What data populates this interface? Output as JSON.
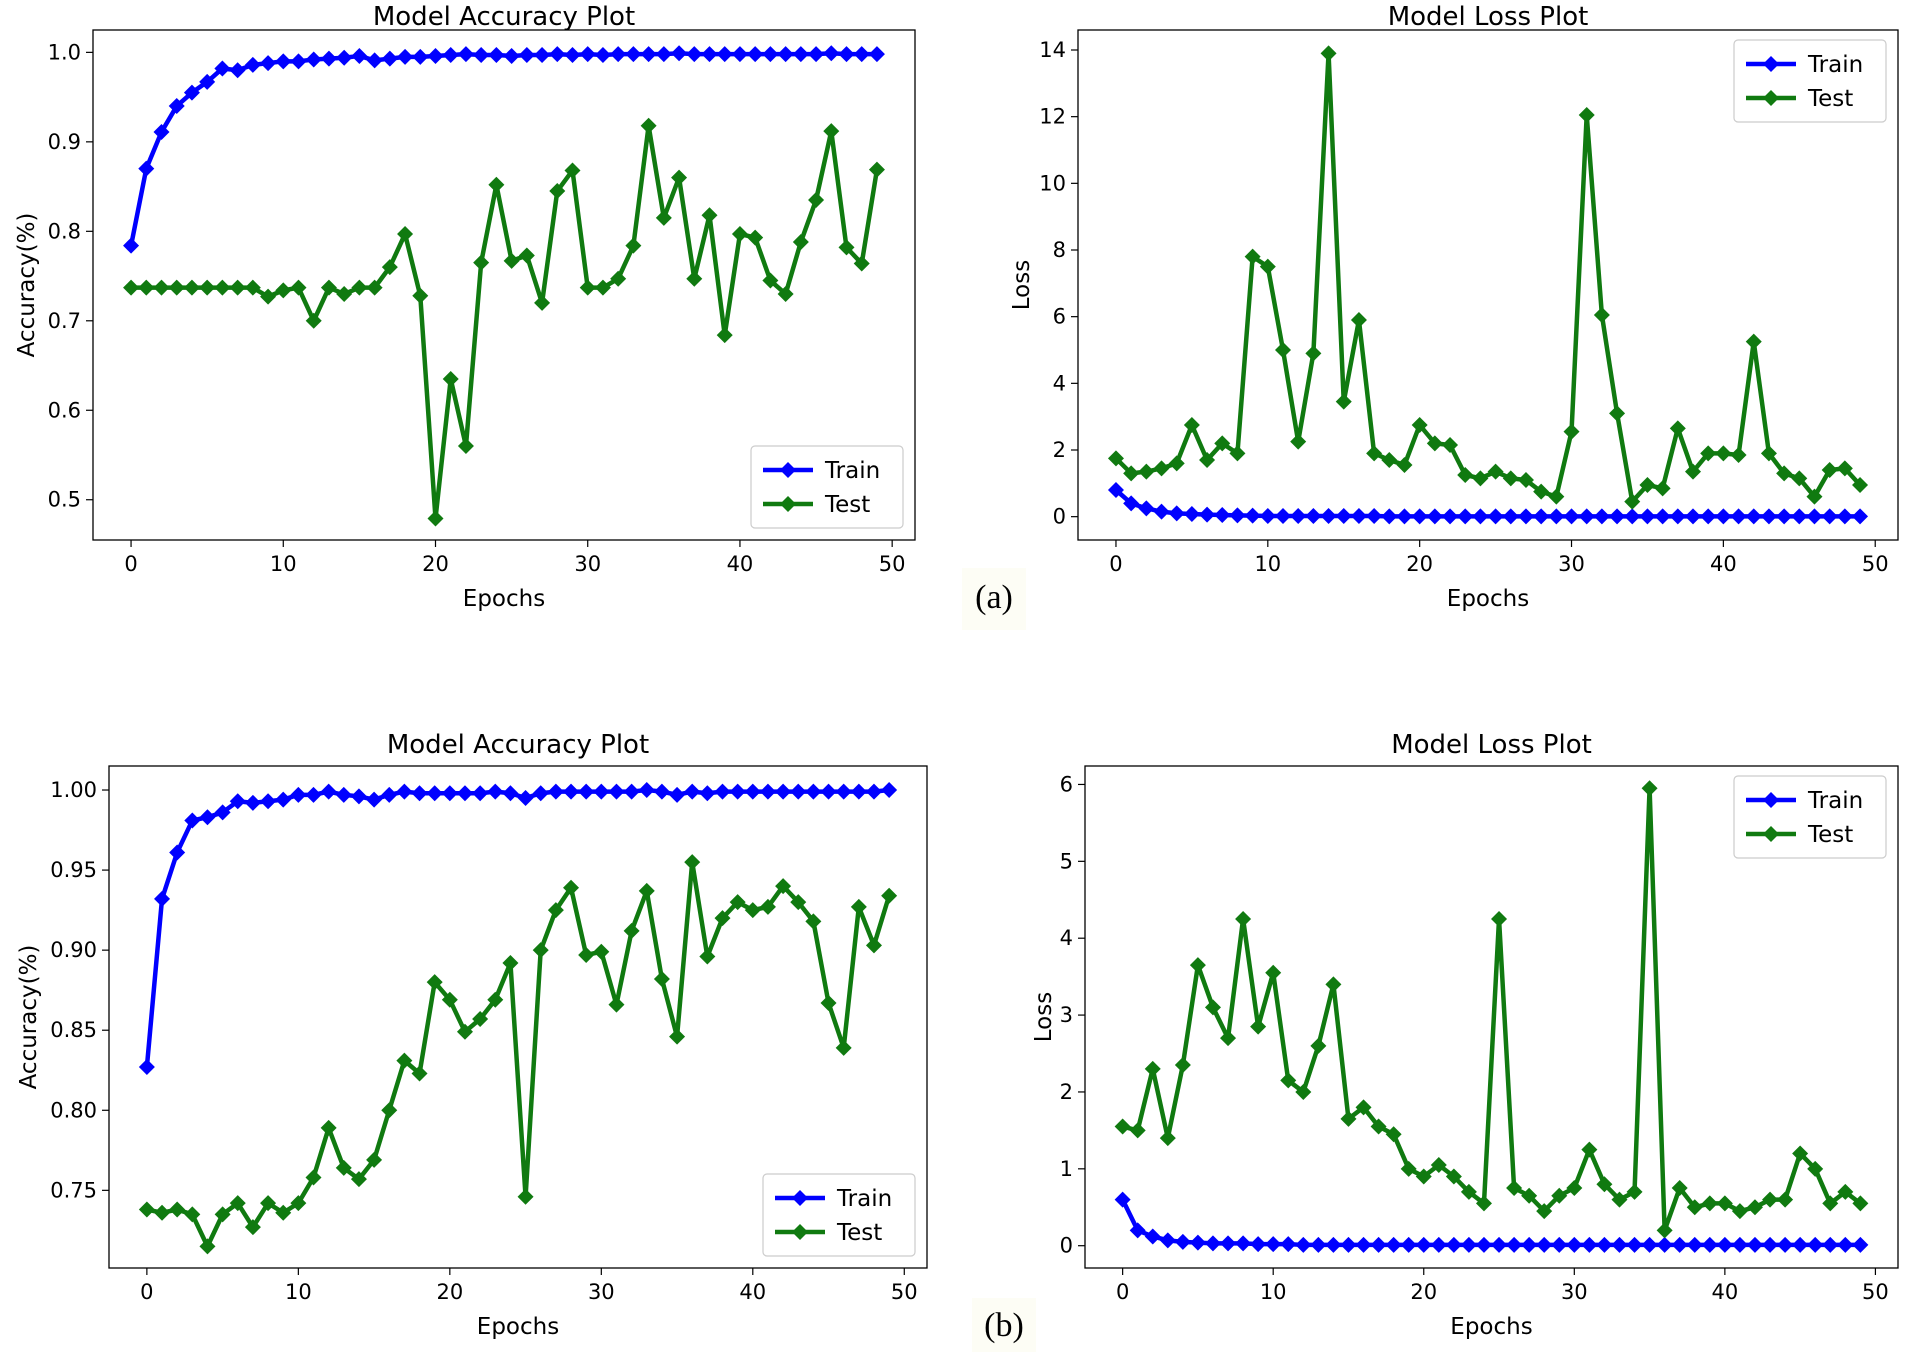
{
  "figure": {
    "panel_labels": [
      "(a)",
      "(b)"
    ],
    "colors": {
      "train": "#0000ff",
      "test": "#107a10"
    }
  },
  "chart_data": [
    {
      "id": "a-accuracy",
      "type": "line",
      "title": "Model Accuracy Plot",
      "xlabel": "Epochs",
      "ylabel": "Accuracy(%)",
      "xlim": [
        -2.5,
        51.5
      ],
      "ylim": [
        0.455,
        1.025
      ],
      "xticks": [
        0,
        10,
        20,
        30,
        40,
        50
      ],
      "yticks": [
        0.5,
        0.6,
        0.7,
        0.8,
        0.9,
        1.0
      ],
      "ytick_labels": [
        "0.5",
        "0.6",
        "0.7",
        "0.8",
        "0.9",
        "1.0"
      ],
      "legend": {
        "position": "lower-right",
        "entries": [
          "Train",
          "Test"
        ]
      },
      "series": [
        {
          "name": "Train",
          "color": "#0000ff",
          "values": [
            0.784,
            0.87,
            0.911,
            0.94,
            0.955,
            0.967,
            0.982,
            0.98,
            0.986,
            0.988,
            0.99,
            0.99,
            0.992,
            0.993,
            0.994,
            0.996,
            0.991,
            0.993,
            0.995,
            0.995,
            0.996,
            0.997,
            0.998,
            0.997,
            0.997,
            0.996,
            0.997,
            0.997,
            0.998,
            0.997,
            0.998,
            0.997,
            0.998,
            0.998,
            0.998,
            0.998,
            0.999,
            0.998,
            0.998,
            0.998,
            0.998,
            0.998,
            0.998,
            0.998,
            0.998,
            0.998,
            0.999,
            0.998,
            0.998,
            0.998
          ]
        },
        {
          "name": "Test",
          "color": "#107a10",
          "values": [
            0.737,
            0.737,
            0.737,
            0.737,
            0.737,
            0.737,
            0.737,
            0.737,
            0.737,
            0.727,
            0.734,
            0.737,
            0.7,
            0.737,
            0.73,
            0.737,
            0.737,
            0.76,
            0.797,
            0.728,
            0.479,
            0.635,
            0.56,
            0.765,
            0.852,
            0.767,
            0.773,
            0.72,
            0.845,
            0.868,
            0.737,
            0.737,
            0.747,
            0.784,
            0.918,
            0.815,
            0.86,
            0.747,
            0.818,
            0.684,
            0.797,
            0.793,
            0.745,
            0.73,
            0.788,
            0.835,
            0.912,
            0.782,
            0.764,
            0.869
          ]
        }
      ]
    },
    {
      "id": "a-loss",
      "type": "line",
      "title": "Model Loss Plot",
      "xlabel": "Epochs",
      "ylabel": "Loss",
      "xlim": [
        -2.5,
        51.5
      ],
      "ylim": [
        -0.7,
        14.6
      ],
      "xticks": [
        0,
        10,
        20,
        30,
        40,
        50
      ],
      "yticks": [
        0,
        2,
        4,
        6,
        8,
        10,
        12,
        14
      ],
      "ytick_labels": [
        "0",
        "2",
        "4",
        "6",
        "8",
        "10",
        "12",
        "14"
      ],
      "legend": {
        "position": "upper-right",
        "entries": [
          "Train",
          "Test"
        ]
      },
      "series": [
        {
          "name": "Train",
          "color": "#0000ff",
          "values": [
            0.8,
            0.4,
            0.25,
            0.15,
            0.1,
            0.08,
            0.06,
            0.05,
            0.04,
            0.03,
            0.02,
            0.02,
            0.02,
            0.02,
            0.02,
            0.02,
            0.02,
            0.02,
            0.01,
            0.01,
            0.01,
            0.01,
            0.01,
            0.01,
            0.01,
            0.01,
            0.01,
            0.01,
            0.01,
            0.01,
            0.01,
            0.01,
            0.01,
            0.01,
            0.01,
            0.01,
            0.01,
            0.01,
            0.01,
            0.01,
            0.01,
            0.01,
            0.01,
            0.01,
            0.01,
            0.01,
            0.01,
            0.01,
            0.01,
            0.01
          ]
        },
        {
          "name": "Test",
          "color": "#107a10",
          "values": [
            1.75,
            1.3,
            1.35,
            1.45,
            1.6,
            2.75,
            1.7,
            2.2,
            1.9,
            7.8,
            7.5,
            5.0,
            2.25,
            4.9,
            13.9,
            3.45,
            5.9,
            1.9,
            1.7,
            1.55,
            2.75,
            2.2,
            2.15,
            1.25,
            1.15,
            1.35,
            1.15,
            1.1,
            0.75,
            0.6,
            2.55,
            12.05,
            6.05,
            3.1,
            0.45,
            0.95,
            0.85,
            2.65,
            1.35,
            1.9,
            1.9,
            1.85,
            5.25,
            1.9,
            1.3,
            1.15,
            0.6,
            1.4,
            1.45,
            0.95
          ]
        }
      ]
    },
    {
      "id": "b-accuracy",
      "type": "line",
      "title": "Model Accuracy Plot",
      "xlabel": "Epochs",
      "ylabel": "Accuracy(%)",
      "xlim": [
        -2.5,
        51.5
      ],
      "ylim": [
        0.7015,
        1.015
      ],
      "xticks": [
        0,
        10,
        20,
        30,
        40,
        50
      ],
      "yticks": [
        0.75,
        0.8,
        0.85,
        0.9,
        0.95,
        1.0
      ],
      "ytick_labels": [
        "0.75",
        "0.80",
        "0.85",
        "0.90",
        "0.95",
        "1.00"
      ],
      "legend": {
        "position": "lower-right",
        "entries": [
          "Train",
          "Test"
        ]
      },
      "series": [
        {
          "name": "Train",
          "color": "#0000ff",
          "values": [
            0.827,
            0.932,
            0.961,
            0.981,
            0.983,
            0.986,
            0.993,
            0.992,
            0.993,
            0.994,
            0.997,
            0.997,
            0.999,
            0.997,
            0.996,
            0.994,
            0.997,
            0.999,
            0.998,
            0.998,
            0.998,
            0.998,
            0.998,
            0.999,
            0.998,
            0.995,
            0.998,
            0.999,
            0.999,
            0.999,
            0.999,
            0.999,
            0.999,
            1.0,
            0.999,
            0.997,
            0.999,
            0.998,
            0.999,
            0.999,
            0.999,
            0.999,
            0.999,
            0.999,
            0.999,
            0.999,
            0.999,
            0.999,
            0.999,
            1.0
          ]
        },
        {
          "name": "Test",
          "color": "#107a10",
          "values": [
            0.738,
            0.736,
            0.738,
            0.735,
            0.715,
            0.735,
            0.742,
            0.727,
            0.742,
            0.736,
            0.742,
            0.758,
            0.789,
            0.764,
            0.757,
            0.769,
            0.8,
            0.831,
            0.823,
            0.88,
            0.869,
            0.849,
            0.857,
            0.869,
            0.892,
            0.746,
            0.9,
            0.925,
            0.939,
            0.897,
            0.899,
            0.866,
            0.912,
            0.937,
            0.882,
            0.846,
            0.955,
            0.896,
            0.92,
            0.93,
            0.925,
            0.927,
            0.94,
            0.93,
            0.918,
            0.867,
            0.839,
            0.927,
            0.903,
            0.934
          ]
        }
      ]
    },
    {
      "id": "b-loss",
      "type": "line",
      "title": "Model Loss Plot",
      "xlabel": "Epochs",
      "ylabel": "Loss",
      "xlim": [
        -2.5,
        51.5
      ],
      "ylim": [
        -0.29,
        6.24
      ],
      "xticks": [
        0,
        10,
        20,
        30,
        40,
        50
      ],
      "yticks": [
        0,
        1,
        2,
        3,
        4,
        5,
        6
      ],
      "ytick_labels": [
        "0",
        "1",
        "2",
        "3",
        "4",
        "5",
        "6"
      ],
      "legend": {
        "position": "upper-right",
        "entries": [
          "Train",
          "Test"
        ]
      },
      "series": [
        {
          "name": "Train",
          "color": "#0000ff",
          "values": [
            0.6,
            0.2,
            0.12,
            0.07,
            0.05,
            0.04,
            0.03,
            0.03,
            0.03,
            0.02,
            0.02,
            0.02,
            0.01,
            0.01,
            0.01,
            0.01,
            0.01,
            0.01,
            0.01,
            0.01,
            0.01,
            0.01,
            0.01,
            0.01,
            0.01,
            0.01,
            0.01,
            0.01,
            0.01,
            0.01,
            0.01,
            0.01,
            0.01,
            0.01,
            0.01,
            0.01,
            0.01,
            0.01,
            0.01,
            0.01,
            0.01,
            0.01,
            0.01,
            0.01,
            0.01,
            0.01,
            0.01,
            0.01,
            0.01,
            0.01
          ]
        },
        {
          "name": "Test",
          "color": "#107a10",
          "values": [
            1.55,
            1.5,
            2.3,
            1.4,
            2.35,
            3.65,
            3.1,
            2.7,
            4.25,
            2.85,
            3.55,
            2.15,
            2.0,
            2.6,
            3.4,
            1.65,
            1.8,
            1.55,
            1.45,
            1.0,
            0.9,
            1.05,
            0.9,
            0.7,
            0.55,
            4.25,
            0.75,
            0.65,
            0.45,
            0.65,
            0.75,
            1.25,
            0.8,
            0.6,
            0.7,
            5.95,
            0.2,
            0.75,
            0.5,
            0.55,
            0.55,
            0.45,
            0.5,
            0.6,
            0.6,
            1.2,
            1.0,
            0.55,
            0.7,
            0.55
          ]
        }
      ]
    }
  ]
}
